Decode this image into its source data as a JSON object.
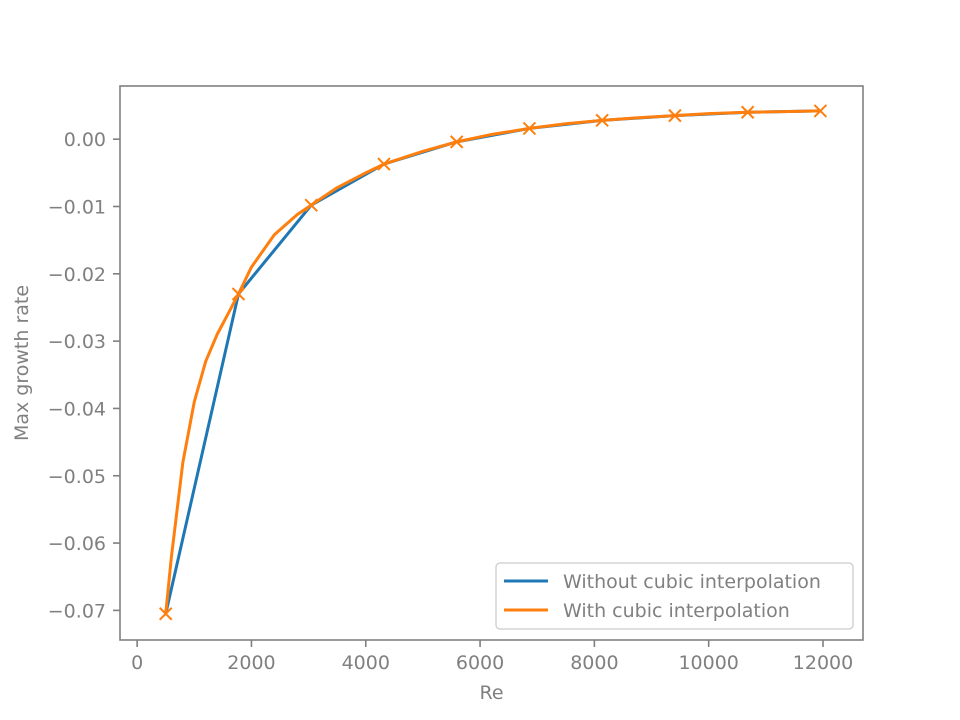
{
  "chart_data": {
    "type": "line",
    "title": "",
    "xlabel": "Re",
    "ylabel": "Max growth rate",
    "xlim": [
      -300,
      12700
    ],
    "ylim": [
      -0.0744,
      0.0079
    ],
    "xticks": [
      0,
      2000,
      4000,
      6000,
      8000,
      10000,
      12000
    ],
    "xtick_labels": [
      "0",
      "2000",
      "4000",
      "6000",
      "8000",
      "10000",
      "12000"
    ],
    "yticks": [
      0.0,
      -0.01,
      -0.02,
      -0.03,
      -0.04,
      -0.05,
      -0.06,
      -0.07
    ],
    "ytick_labels": [
      "0.00",
      "−0.01",
      "−0.02",
      "−0.03",
      "−0.04",
      "−0.05",
      "−0.06",
      "−0.07"
    ],
    "grid": false,
    "legend_position": "bottom-right",
    "series": [
      {
        "name": "Without cubic interpolation",
        "color": "#1f77b4",
        "style": "line",
        "x": [
          500,
          1772.7,
          3045.5,
          4318.2,
          5590.9,
          6863.6,
          8136.4,
          9409.1,
          10681.8,
          11954.5
        ],
        "y": [
          -0.0705,
          -0.023,
          -0.0098,
          -0.0037,
          -0.0004,
          0.0016,
          0.0028,
          0.0035,
          0.004,
          0.0042
        ]
      },
      {
        "name": "With cubic interpolation",
        "color": "#ff7f0e",
        "style": "line",
        "markers": "x",
        "x": [
          500,
          600,
          800,
          1000,
          1200,
          1400,
          1600,
          1772.7,
          2000,
          2400,
          2800,
          3045.5,
          3500,
          4000,
          4318.2,
          5000,
          5590.9,
          6200,
          6863.6,
          7500,
          8136.4,
          8800,
          9409.1,
          10000,
          10681.8,
          11300,
          11954.5
        ],
        "y": [
          -0.0705,
          -0.062,
          -0.048,
          -0.039,
          -0.033,
          -0.029,
          -0.0258,
          -0.023,
          -0.019,
          -0.0142,
          -0.0112,
          -0.0098,
          -0.0072,
          -0.005,
          -0.0037,
          -0.0018,
          -0.0004,
          0.0007,
          0.0016,
          0.0023,
          0.0028,
          0.0032,
          0.0035,
          0.0038,
          0.004,
          0.0041,
          0.0042
        ],
        "marker_x": [
          500,
          1772.7,
          3045.5,
          4318.2,
          5590.9,
          6863.6,
          8136.4,
          9409.1,
          10681.8,
          11954.5
        ],
        "marker_y": [
          -0.0705,
          -0.023,
          -0.0098,
          -0.0037,
          -0.0004,
          0.0016,
          0.0028,
          0.0035,
          0.004,
          0.0042
        ]
      }
    ]
  }
}
